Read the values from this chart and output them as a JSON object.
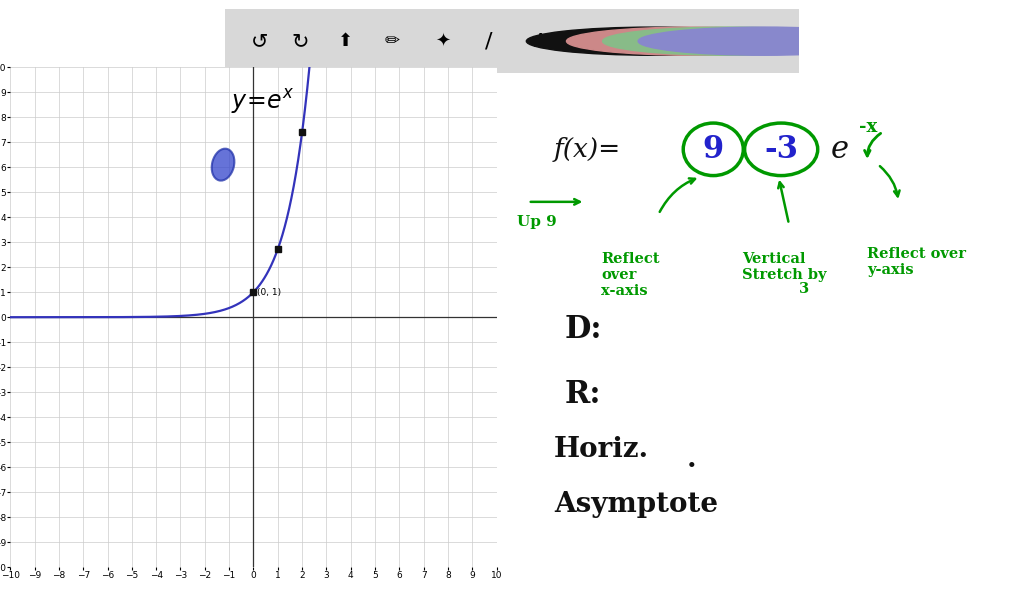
{
  "bg_color": "#f0f0f0",
  "white": "#ffffff",
  "toolbar_bg": "#d8d8d8",
  "graph_xlim": [
    -10,
    10
  ],
  "graph_ylim": [
    -10,
    10
  ],
  "curve_color": "#3333bb",
  "curve_linewidth": 1.6,
  "point_color": "#111111",
  "point_size": 25,
  "point_label": "(0, 1)",
  "grid_color": "#cccccc",
  "grid_linewidth": 0.5,
  "axis_color": "#333333",
  "tick_fontsize": 6.5,
  "green": "#009900",
  "blue_text": "#2222cc",
  "black": "#111111",
  "blob_color": "#3344cc",
  "toolbar_circles": [
    "#111111",
    "#cc8888",
    "#88bb88",
    "#8888cc"
  ]
}
